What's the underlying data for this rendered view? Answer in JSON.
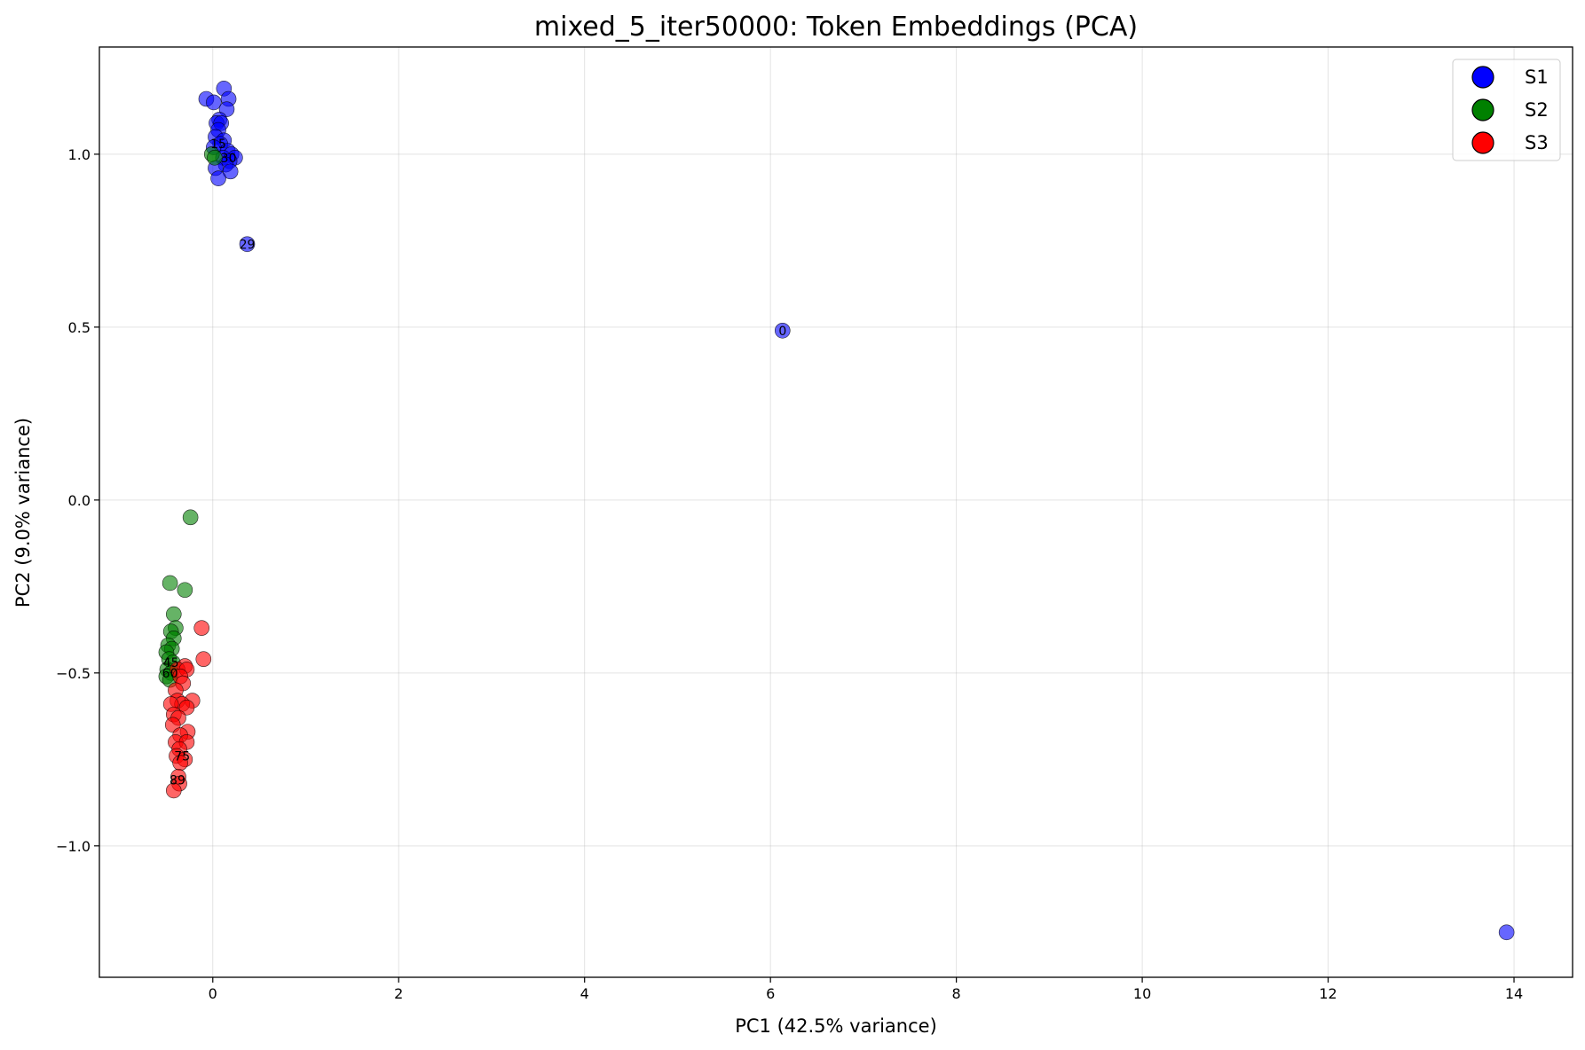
{
  "chart_data": {
    "type": "scatter",
    "title": "mixed_5_iter50000: Token Embeddings (PCA)",
    "xlabel": "PC1 (42.5% variance)",
    "ylabel": "PC2 (9.0% variance)",
    "xlim": [
      -1.22,
      14.63
    ],
    "ylim": [
      -1.38,
      1.31
    ],
    "xticks": [
      0,
      2,
      4,
      6,
      8,
      10,
      12,
      14
    ],
    "xtick_labels": [
      "0",
      "2",
      "4",
      "6",
      "8",
      "10",
      "12",
      "14"
    ],
    "yticks": [
      -1.0,
      -0.5,
      0.0,
      0.5,
      1.0
    ],
    "ytick_labels": [
      "−1.0",
      "−0.5",
      "0.0",
      "0.5",
      "1.0"
    ],
    "grid": true,
    "legend_position": "top-right",
    "series": [
      {
        "name": "S1",
        "color": "#0000ff",
        "points": [
          [
            0.12,
            1.19
          ],
          [
            -0.07,
            1.16
          ],
          [
            0.01,
            1.15
          ],
          [
            0.17,
            1.16
          ],
          [
            0.15,
            1.13
          ],
          [
            0.07,
            1.1
          ],
          [
            0.04,
            1.09
          ],
          [
            0.09,
            1.09
          ],
          [
            0.06,
            1.07
          ],
          [
            0.03,
            1.05
          ],
          [
            0.12,
            1.04
          ],
          [
            0.08,
            1.03
          ],
          [
            0.01,
            1.02
          ],
          [
            0.16,
            1.01
          ],
          [
            0.2,
            1.0
          ],
          [
            0.24,
            0.99
          ],
          [
            0.11,
            0.99
          ],
          [
            0.18,
            0.98
          ],
          [
            0.14,
            0.97
          ],
          [
            0.03,
            0.96
          ],
          [
            0.19,
            0.95
          ],
          [
            0.06,
            0.93
          ],
          [
            0.37,
            0.74
          ],
          [
            6.13,
            0.49
          ],
          [
            13.92,
            -1.25
          ]
        ],
        "labels": [
          {
            "x": 0.06,
            "y": 1.03,
            "text": "15"
          },
          {
            "x": 0.17,
            "y": 0.99,
            "text": "30"
          },
          {
            "x": 0.37,
            "y": 0.74,
            "text": "29"
          },
          {
            "x": 6.13,
            "y": 0.49,
            "text": "0"
          }
        ]
      },
      {
        "name": "S2",
        "color": "#008000",
        "points": [
          [
            -0.24,
            -0.05
          ],
          [
            -0.46,
            -0.24
          ],
          [
            -0.3,
            -0.26
          ],
          [
            -0.42,
            -0.33
          ],
          [
            -0.4,
            -0.37
          ],
          [
            -0.45,
            -0.38
          ],
          [
            -0.42,
            -0.4
          ],
          [
            -0.48,
            -0.42
          ],
          [
            -0.44,
            -0.43
          ],
          [
            -0.5,
            -0.44
          ],
          [
            -0.47,
            -0.46
          ],
          [
            -0.43,
            -0.47
          ],
          [
            -0.49,
            -0.49
          ],
          [
            -0.45,
            -0.5
          ],
          [
            -0.5,
            -0.51
          ],
          [
            -0.46,
            -0.52
          ],
          [
            -0.01,
            1.0
          ],
          [
            0.02,
            0.99
          ]
        ],
        "labels": [
          {
            "x": -0.45,
            "y": -0.47,
            "text": "45"
          },
          {
            "x": -0.46,
            "y": -0.5,
            "text": "60"
          }
        ]
      },
      {
        "name": "S3",
        "color": "#ff0000",
        "points": [
          [
            -0.12,
            -0.37
          ],
          [
            -0.1,
            -0.46
          ],
          [
            -0.3,
            -0.48
          ],
          [
            -0.38,
            -0.49
          ],
          [
            -0.28,
            -0.49
          ],
          [
            -0.35,
            -0.51
          ],
          [
            -0.32,
            -0.53
          ],
          [
            -0.4,
            -0.55
          ],
          [
            -0.22,
            -0.58
          ],
          [
            -0.38,
            -0.58
          ],
          [
            -0.33,
            -0.59
          ],
          [
            -0.45,
            -0.59
          ],
          [
            -0.28,
            -0.6
          ],
          [
            -0.42,
            -0.62
          ],
          [
            -0.37,
            -0.63
          ],
          [
            -0.43,
            -0.65
          ],
          [
            -0.27,
            -0.67
          ],
          [
            -0.35,
            -0.68
          ],
          [
            -0.4,
            -0.7
          ],
          [
            -0.28,
            -0.7
          ],
          [
            -0.36,
            -0.72
          ],
          [
            -0.39,
            -0.74
          ],
          [
            -0.3,
            -0.75
          ],
          [
            -0.35,
            -0.76
          ],
          [
            -0.37,
            -0.8
          ],
          [
            -0.36,
            -0.82
          ],
          [
            -0.42,
            -0.84
          ]
        ],
        "labels": [
          {
            "x": -0.33,
            "y": -0.74,
            "text": "75"
          },
          {
            "x": -0.38,
            "y": -0.81,
            "text": "89"
          }
        ]
      }
    ]
  }
}
